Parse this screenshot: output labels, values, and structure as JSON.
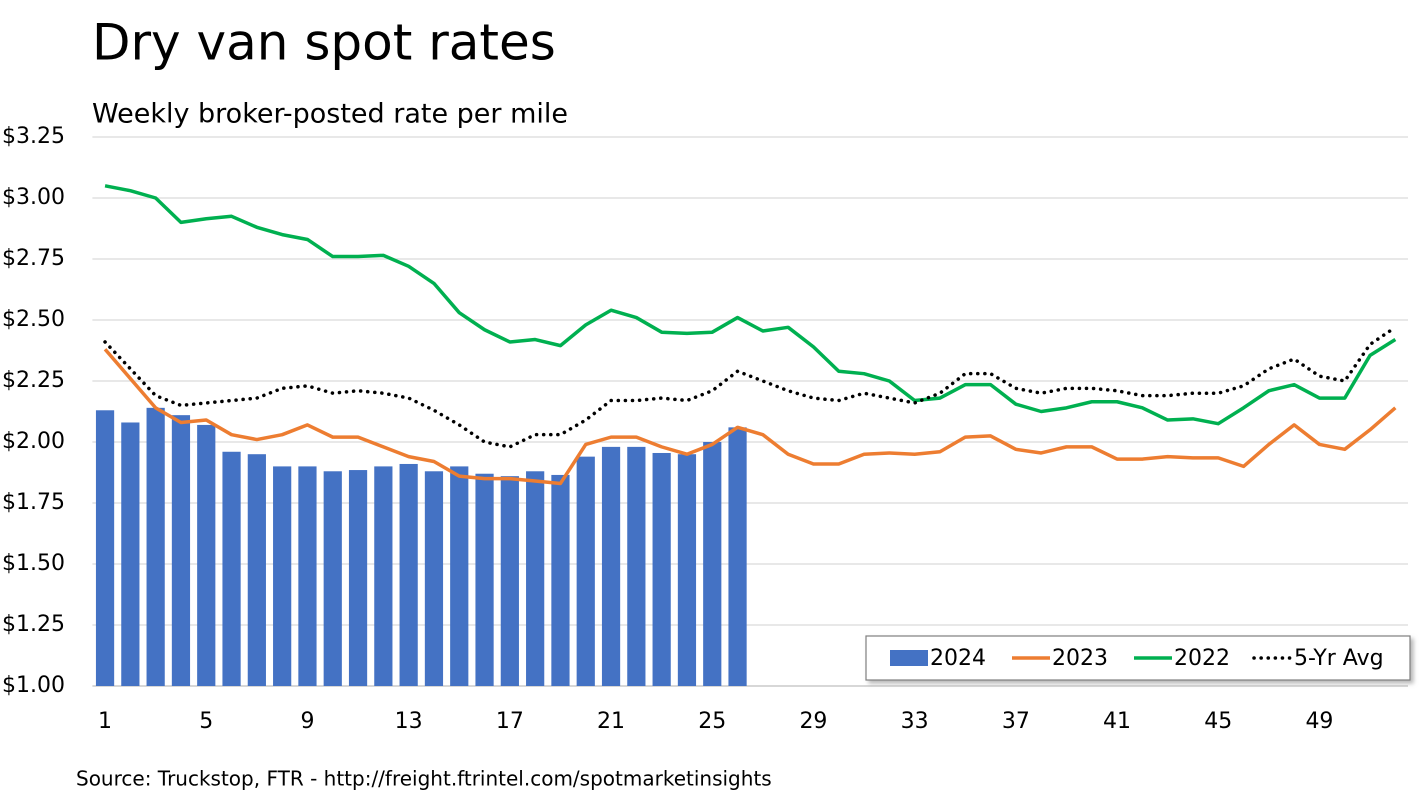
{
  "chart_data": {
    "type": "combo",
    "title": "Dry van spot rates",
    "subtitle": "Weekly broker-posted rate per mile",
    "source": "Source: Truckstop, FTR - http://freight.ftrintel.com/spotmarketinsights",
    "categories": [
      "1",
      null,
      null,
      null,
      "5",
      null,
      null,
      null,
      "9",
      null,
      null,
      null,
      "13",
      null,
      null,
      null,
      "17",
      null,
      null,
      null,
      "21",
      null,
      null,
      null,
      "25",
      null,
      null,
      null,
      "29",
      null,
      null,
      null,
      "33",
      null,
      null,
      null,
      "37",
      null,
      null,
      null,
      "41",
      null,
      null,
      null,
      "45",
      null,
      null,
      null,
      "49",
      null,
      null,
      null
    ],
    "series": [
      {
        "name": "2024",
        "type": "bar",
        "color": "#4472c4",
        "values": [
          2.13,
          2.08,
          2.14,
          2.11,
          2.07,
          1.96,
          1.95,
          1.9,
          1.9,
          1.88,
          1.885,
          1.9,
          1.91,
          1.88,
          1.9,
          1.87,
          1.86,
          1.88,
          1.865,
          1.94,
          1.98,
          1.98,
          1.955,
          1.95,
          2.0,
          2.06,
          null,
          null,
          null,
          null,
          null,
          null,
          null,
          null,
          null,
          null,
          null,
          null,
          null,
          null,
          null,
          null,
          null,
          null,
          null,
          null,
          null,
          null,
          null,
          null,
          null,
          null
        ]
      },
      {
        "name": "2023",
        "type": "line",
        "color": "#ed7d31",
        "style": "solid",
        "values": [
          2.38,
          2.26,
          2.14,
          2.08,
          2.09,
          2.03,
          2.01,
          2.03,
          2.07,
          2.02,
          2.02,
          1.98,
          1.94,
          1.92,
          1.86,
          1.85,
          1.85,
          1.84,
          1.83,
          1.99,
          2.02,
          2.02,
          1.98,
          1.95,
          1.99,
          2.06,
          2.03,
          1.95,
          1.91,
          1.91,
          1.95,
          1.955,
          1.95,
          1.96,
          2.02,
          2.025,
          1.97,
          1.955,
          1.98,
          1.98,
          1.93,
          1.93,
          1.94,
          1.935,
          1.935,
          1.9,
          1.99,
          2.07,
          1.99,
          1.97,
          2.05,
          2.14
        ]
      },
      {
        "name": "2022",
        "type": "line",
        "color": "#00b050",
        "style": "solid",
        "values": [
          3.05,
          3.03,
          3.0,
          2.9,
          2.915,
          2.925,
          2.88,
          2.85,
          2.83,
          2.76,
          2.76,
          2.765,
          2.72,
          2.65,
          2.53,
          2.46,
          2.41,
          2.42,
          2.395,
          2.48,
          2.54,
          2.51,
          2.45,
          2.445,
          2.45,
          2.51,
          2.455,
          2.47,
          2.39,
          2.29,
          2.28,
          2.25,
          2.17,
          2.18,
          2.235,
          2.235,
          2.155,
          2.125,
          2.14,
          2.165,
          2.165,
          2.14,
          2.09,
          2.095,
          2.075,
          2.14,
          2.21,
          2.235,
          2.18,
          2.18,
          2.355,
          2.42
        ]
      },
      {
        "name": "5-Yr Avg",
        "type": "line",
        "color": "#000000",
        "style": "dotted",
        "values": [
          2.41,
          2.3,
          2.19,
          2.15,
          2.16,
          2.17,
          2.18,
          2.22,
          2.23,
          2.2,
          2.21,
          2.2,
          2.18,
          2.13,
          2.07,
          2.0,
          1.98,
          2.03,
          2.03,
          2.09,
          2.17,
          2.17,
          2.18,
          2.17,
          2.21,
          2.29,
          2.25,
          2.21,
          2.18,
          2.17,
          2.2,
          2.18,
          2.16,
          2.2,
          2.28,
          2.28,
          2.22,
          2.2,
          2.22,
          2.22,
          2.21,
          2.19,
          2.19,
          2.2,
          2.2,
          2.23,
          2.3,
          2.34,
          2.27,
          2.25,
          2.4,
          2.47
        ]
      }
    ],
    "ylim": [
      1.0,
      3.25
    ],
    "yticks": [
      {
        "value": 1.0,
        "label": "$1.00"
      },
      {
        "value": 1.25,
        "label": "$1.25"
      },
      {
        "value": 1.5,
        "label": "$1.50"
      },
      {
        "value": 1.75,
        "label": "$1.75"
      },
      {
        "value": 2.0,
        "label": "$2.00"
      },
      {
        "value": 2.25,
        "label": "$2.25"
      },
      {
        "value": 2.5,
        "label": "$2.50"
      },
      {
        "value": 2.75,
        "label": "$2.75"
      },
      {
        "value": 3.0,
        "label": "$3.00"
      },
      {
        "value": 3.25,
        "label": "$3.25"
      }
    ],
    "grid": true,
    "legend": "bottom-right"
  }
}
